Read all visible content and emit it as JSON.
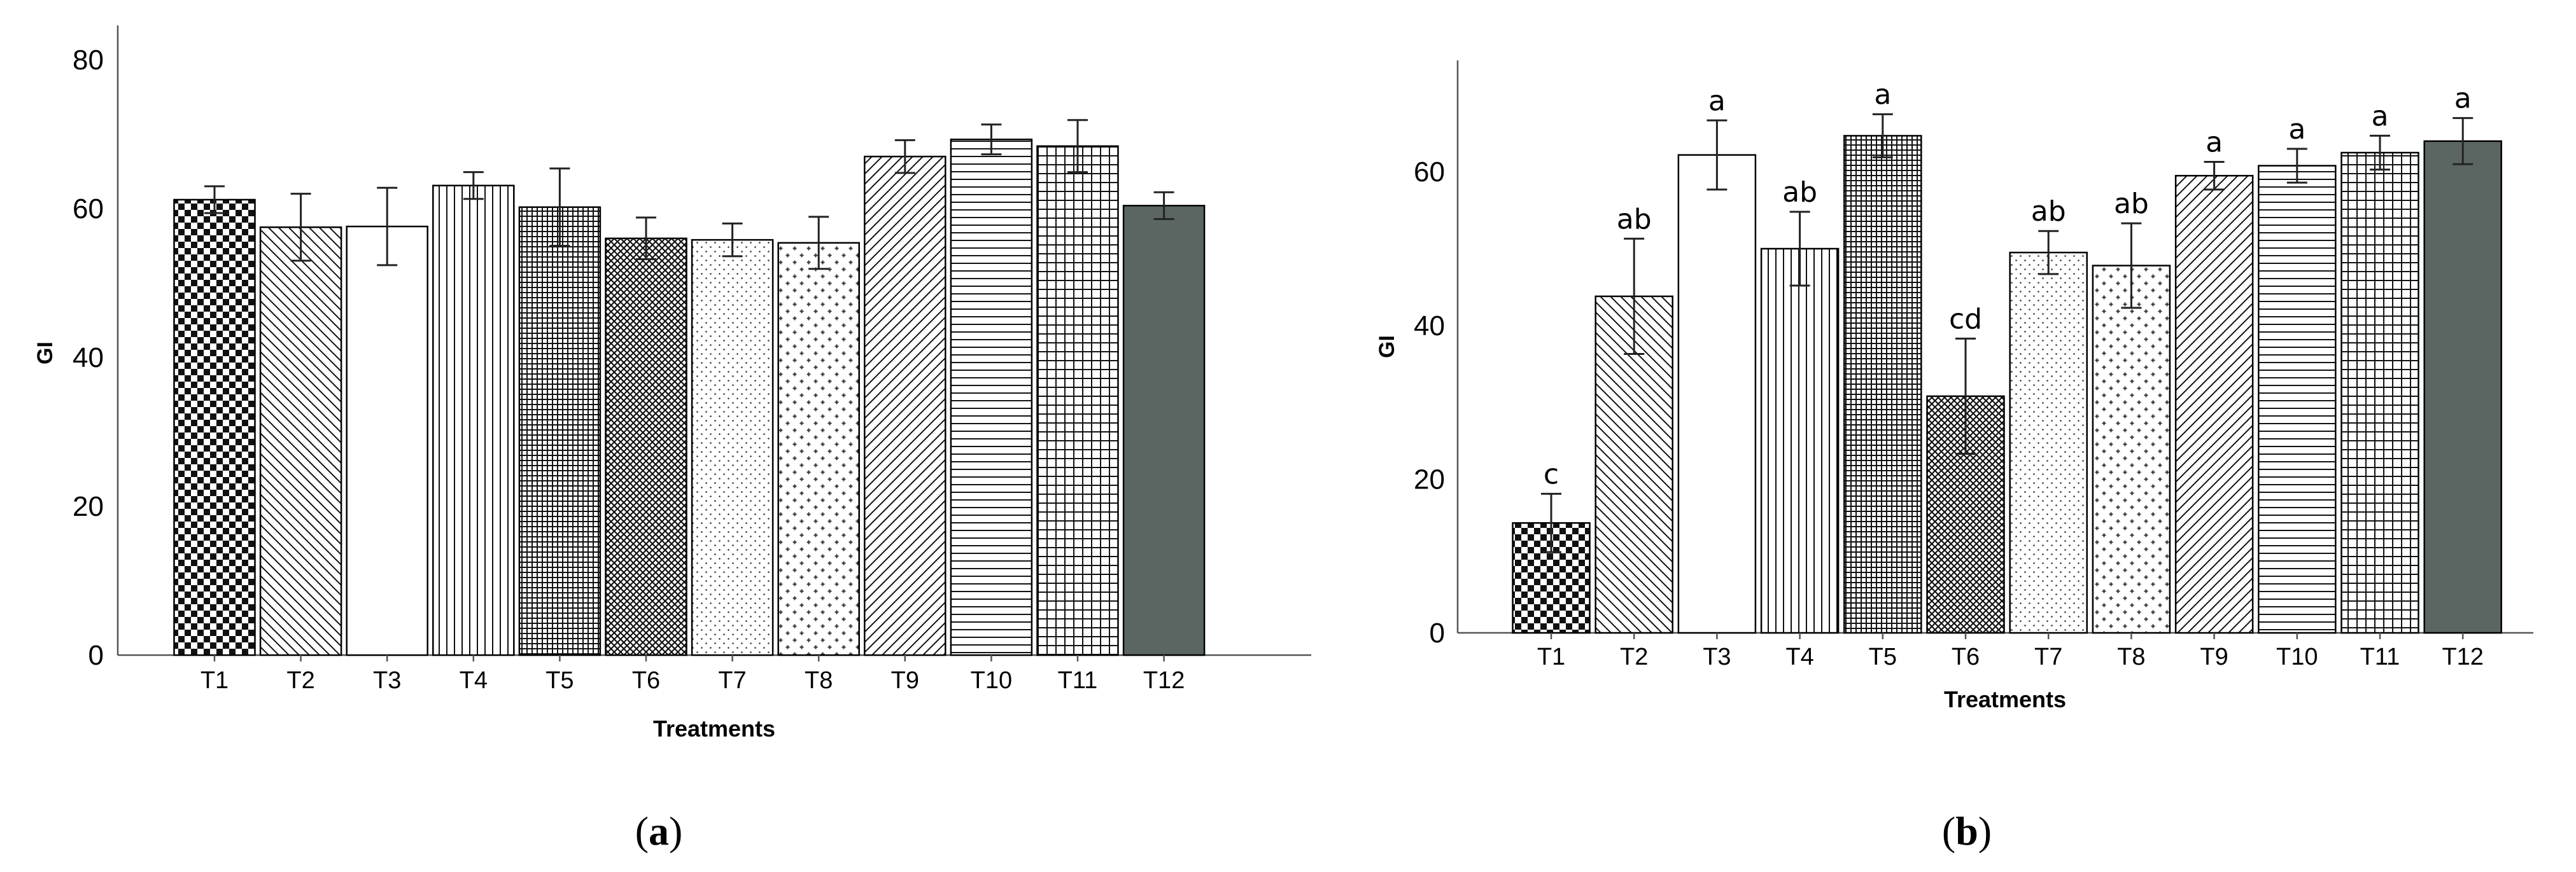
{
  "colors": {
    "axis": "#555555",
    "bar_stroke": "#000000",
    "solid_bar": "#5b6662",
    "pattern_ink": "#111111"
  },
  "chart_data": [
    {
      "type": "bar",
      "panel": "a",
      "caption": {
        "open": "(",
        "letter": "a",
        "close": ")"
      },
      "title": "",
      "xlabel": "Treatments",
      "ylabel": "GI",
      "ylim": [
        0,
        85
      ],
      "yticks": [
        0,
        20,
        40,
        60,
        80
      ],
      "grid": false,
      "categories": [
        "T1",
        "T2",
        "T3",
        "T4",
        "T5",
        "T6",
        "T7",
        "T8",
        "T9",
        "T10",
        "T11",
        "T12"
      ],
      "values": [
        61.2,
        57.5,
        57.6,
        63.1,
        60.2,
        56.0,
        55.8,
        55.4,
        67.0,
        69.3,
        68.4,
        60.4
      ],
      "error": [
        1.8,
        4.5,
        5.2,
        1.8,
        5.2,
        2.8,
        2.2,
        3.5,
        2.2,
        2.0,
        3.5,
        1.8
      ],
      "bar_labels": [],
      "patterns": [
        "checker",
        "diag-back",
        "none",
        "vlines",
        "grid-fine",
        "grid-diag",
        "dots",
        "crosses",
        "diag-fwd",
        "hlines",
        "grid",
        "solid"
      ]
    },
    {
      "type": "bar",
      "panel": "b",
      "caption": {
        "open": "(",
        "letter": "b",
        "close": ")"
      },
      "title": "",
      "xlabel": "Treatments",
      "ylabel": "GI",
      "ylim": [
        0,
        75
      ],
      "yticks": [
        0,
        20,
        40,
        60
      ],
      "grid": false,
      "categories": [
        "T1",
        "T2",
        "T3",
        "T4",
        "T5",
        "T6",
        "T7",
        "T8",
        "T9",
        "T10",
        "T11",
        "T12"
      ],
      "values": [
        14.3,
        43.8,
        62.2,
        50.0,
        64.7,
        30.8,
        49.5,
        47.8,
        59.5,
        60.8,
        62.5,
        64.0
      ],
      "error": [
        3.8,
        7.5,
        4.5,
        4.8,
        2.8,
        7.5,
        2.8,
        5.5,
        1.8,
        2.2,
        2.2,
        3.0
      ],
      "bar_labels": [
        "c",
        "ab",
        "a",
        "ab",
        "a",
        "cd",
        "ab",
        "ab",
        "a",
        "a",
        "a",
        "a"
      ],
      "patterns": [
        "checker",
        "diag-back",
        "none",
        "vlines",
        "grid-fine",
        "grid-diag",
        "dots",
        "crosses",
        "diag-fwd",
        "hlines",
        "grid",
        "solid"
      ]
    }
  ]
}
